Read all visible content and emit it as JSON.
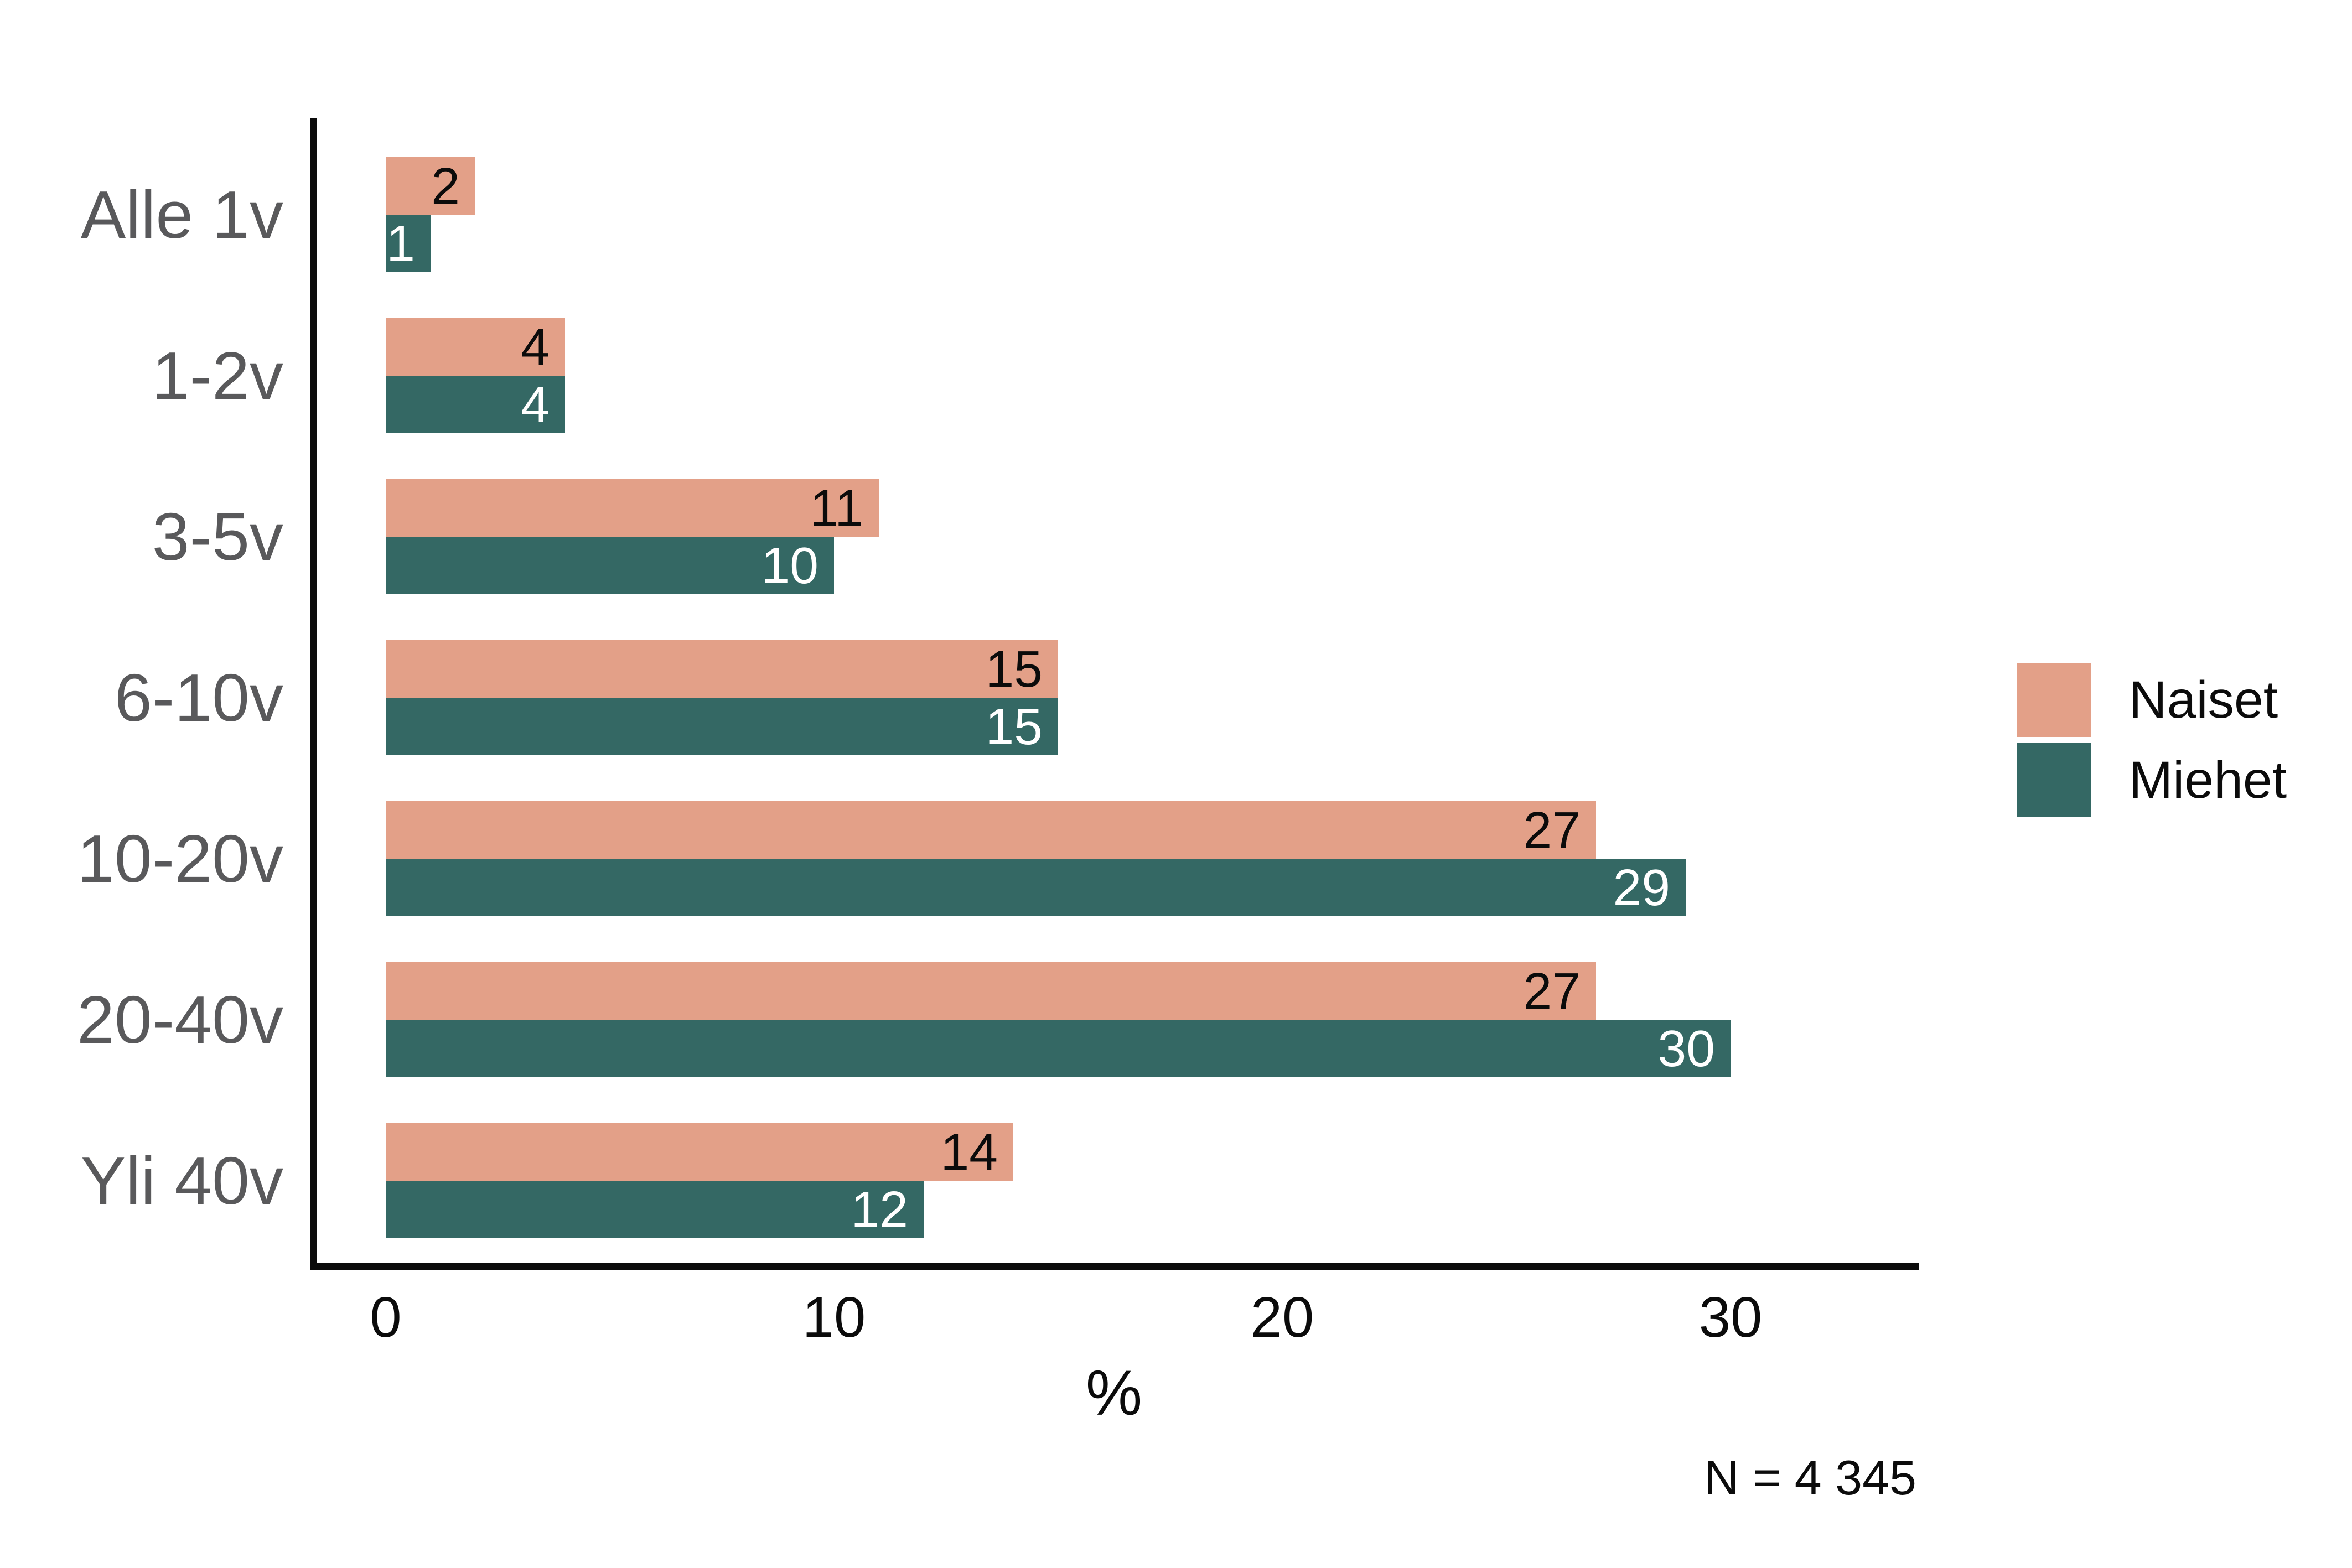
{
  "chart_data": {
    "type": "bar",
    "orientation": "horizontal",
    "title": "",
    "xlabel": "%",
    "ylabel": "",
    "xlim": [
      0,
      34
    ],
    "xticks": [
      0,
      10,
      20,
      30
    ],
    "grid": false,
    "legend_position": "right-center",
    "categories": [
      "Alle 1v",
      "1-2v",
      "3-5v",
      "6-10v",
      "10-20v",
      "20-40v",
      "Yli 40v"
    ],
    "series": [
      {
        "name": "Naiset",
        "color": "#E3A088",
        "label_color": "#0b0b0b",
        "values": [
          2,
          4,
          11,
          15,
          27,
          27,
          14
        ]
      },
      {
        "name": "Miehet",
        "color": "#346864",
        "label_color": "#ffffff",
        "values": [
          1,
          4,
          10,
          15,
          29,
          30,
          12
        ]
      }
    ],
    "note": "N = 4 345"
  },
  "colors": {
    "background": "#ffffff",
    "axis": "#0b0b0b",
    "category_label": "#59595b",
    "tick_label": "#0b0b0b",
    "naiset": "#E3A088",
    "miehet": "#346864"
  }
}
